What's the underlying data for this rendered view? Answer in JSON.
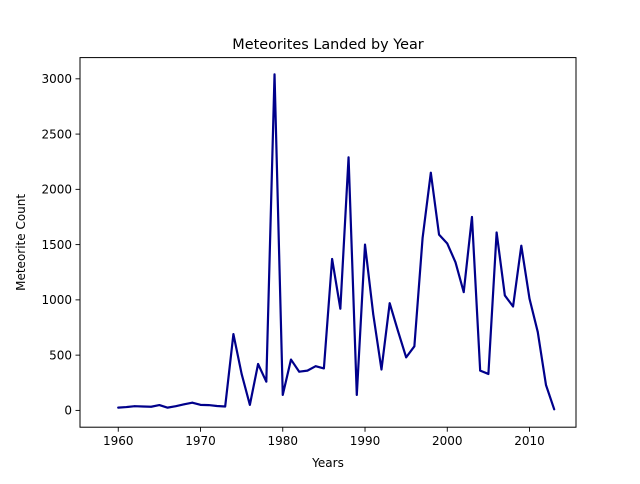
{
  "chart_data": {
    "type": "line",
    "title": "Meteorites Landed by Year",
    "xlabel": "Years",
    "ylabel": "Meteorite Count",
    "xlim": [
      1955.35,
      2015.65
    ],
    "ylim": [
      -152,
      3192
    ],
    "xticks": [
      1960,
      1970,
      1980,
      1990,
      2000,
      2010
    ],
    "yticks": [
      0,
      500,
      1000,
      1500,
      2000,
      2500,
      3000
    ],
    "grid": false,
    "line_color": "#00008b",
    "series": [
      {
        "x": [
          1960,
          1961,
          1962,
          1963,
          1964,
          1965,
          1966,
          1967,
          1968,
          1969,
          1970,
          1971,
          1972,
          1973,
          1974,
          1975,
          1976,
          1977,
          1978,
          1979,
          1980,
          1981,
          1982,
          1983,
          1984,
          1985,
          1986,
          1987,
          1988,
          1989,
          1990,
          1991,
          1992,
          1993,
          1994,
          1995,
          1996,
          1997,
          1998,
          1999,
          2000,
          2001,
          2002,
          2003,
          2004,
          2005,
          2006,
          2007,
          2008,
          2009,
          2010,
          2011,
          2012,
          2013
        ],
        "y": [
          25,
          30,
          38,
          35,
          33,
          48,
          25,
          38,
          55,
          70,
          50,
          48,
          40,
          35,
          690,
          330,
          50,
          420,
          260,
          3040,
          140,
          460,
          350,
          360,
          400,
          380,
          1370,
          920,
          2290,
          140,
          1500,
          870,
          370,
          970,
          720,
          480,
          580,
          1560,
          2150,
          1590,
          1510,
          1340,
          1070,
          1750,
          360,
          330,
          1610,
          1040,
          940,
          1490,
          1010,
          710,
          230,
          10
        ]
      }
    ]
  }
}
